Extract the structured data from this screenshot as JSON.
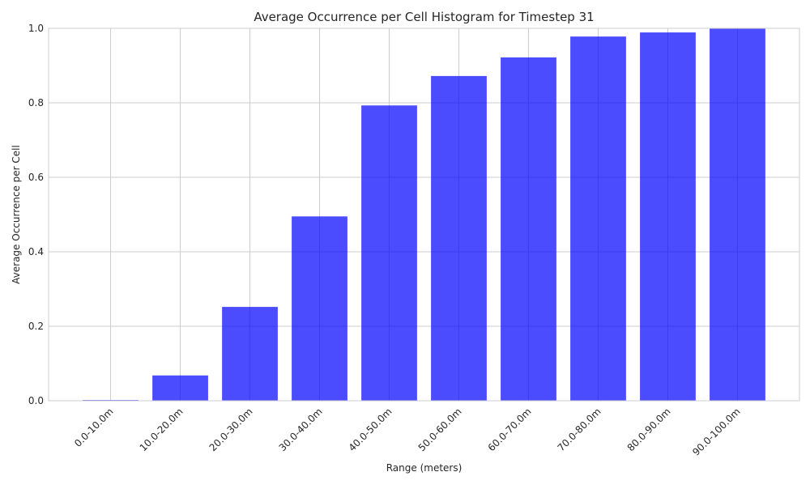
{
  "chart_data": {
    "type": "bar",
    "title": "Average Occurrence per Cell Histogram for Timestep 31",
    "xlabel": "Range (meters)",
    "ylabel": "Average Occurrence per Cell",
    "categories": [
      "0.0-10.0m",
      "10.0-20.0m",
      "20.0-30.0m",
      "30.0-40.0m",
      "40.0-50.0m",
      "50.0-60.0m",
      "60.0-70.0m",
      "70.0-80.0m",
      "80.0-90.0m",
      "90.0-100.0m"
    ],
    "values": [
      0.002,
      0.068,
      0.252,
      0.495,
      0.793,
      0.872,
      0.922,
      0.978,
      0.989,
      1.0
    ],
    "ylim": [
      0,
      1.0
    ],
    "yticks": [
      "0.0",
      "0.2",
      "0.4",
      "0.6",
      "0.8",
      "1.0"
    ],
    "grid": true,
    "bar_color": "#0000ff",
    "bar_opacity": 0.7
  }
}
